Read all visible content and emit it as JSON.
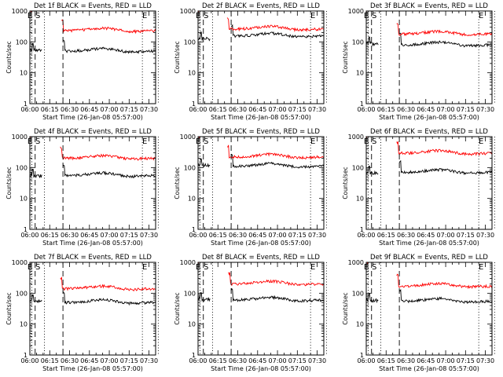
{
  "figure": {
    "x_label": "Start Time (26-Jan-08 05:57:00)",
    "y_label": "Counts/sec",
    "x_ticks": [
      "06:00",
      "06:15",
      "06:30",
      "06:45",
      "07:00",
      "07:15",
      "07:30"
    ],
    "y_ticks": [
      "1",
      "10",
      "100",
      "1000"
    ],
    "marker_labels": [
      "E",
      "S",
      "E"
    ]
  },
  "chart_data": [
    {
      "type": "line",
      "title": "Det 1f BLACK = Events, RED = LLD",
      "xlim_min": [
        3,
        98
      ],
      "ylim": [
        1,
        1000
      ],
      "markers_dashed": [
        7,
        28
      ],
      "markers_dotted": [
        4.5,
        14,
        88,
        100
      ],
      "marker_E1": 4.5,
      "marker_S": 7,
      "marker_E2": 88,
      "series": [
        {
          "name": "Events",
          "color": "#000000",
          "base": 50,
          "pre": 55,
          "gap_end": 28
        },
        {
          "name": "LLD",
          "color": "#ff0000",
          "base": 230,
          "pre": 1000,
          "gap_end": 27
        }
      ]
    },
    {
      "type": "line",
      "title": "Det 2f BLACK = Events, RED = LLD",
      "xlim_min": [
        3,
        98
      ],
      "ylim": [
        1,
        1000
      ],
      "markers_dashed": [
        7,
        28
      ],
      "markers_dotted": [
        4.5,
        14,
        88,
        100
      ],
      "marker_E1": 4.5,
      "marker_S": 7,
      "marker_E2": 88,
      "series": [
        {
          "name": "Events",
          "color": "#000000",
          "base": 155,
          "pre": 130,
          "gap_end": 28
        },
        {
          "name": "LLD",
          "color": "#ff0000",
          "base": 260,
          "pre": 1000,
          "gap_end": 25
        }
      ]
    },
    {
      "type": "line",
      "title": "Det 3f BLACK = Events, RED = LLD",
      "xlim_min": [
        3,
        98
      ],
      "ylim": [
        1,
        1000
      ],
      "markers_dashed": [
        7,
        28
      ],
      "markers_dotted": [
        4.5,
        14,
        88,
        100
      ],
      "marker_E1": 4.5,
      "marker_S": 7,
      "marker_E2": 88,
      "series": [
        {
          "name": "Events",
          "color": "#000000",
          "base": 80,
          "pre": 90,
          "gap_end": 28
        },
        {
          "name": "LLD",
          "color": "#ff0000",
          "base": 180,
          "pre": 1000,
          "gap_end": 26
        }
      ]
    },
    {
      "type": "line",
      "title": "Det 4f BLACK = Events, RED = LLD",
      "xlim_min": [
        3,
        98
      ],
      "ylim": [
        1,
        1000
      ],
      "markers_dashed": [
        7,
        28
      ],
      "markers_dotted": [
        4.5,
        14,
        88,
        100
      ],
      "marker_E1": 4.5,
      "marker_S": 7,
      "marker_E2": 88,
      "series": [
        {
          "name": "Events",
          "color": "#000000",
          "base": 55,
          "pre": 55,
          "gap_end": 28
        },
        {
          "name": "LLD",
          "color": "#ff0000",
          "base": 200,
          "pre": 1000,
          "gap_end": 26
        }
      ]
    },
    {
      "type": "line",
      "title": "Det 5f BLACK = Events, RED = LLD",
      "xlim_min": [
        3,
        98
      ],
      "ylim": [
        1,
        1000
      ],
      "markers_dashed": [
        7,
        28
      ],
      "markers_dotted": [
        4.5,
        14,
        88,
        100
      ],
      "marker_E1": 4.5,
      "marker_S": 7,
      "marker_E2": 88,
      "series": [
        {
          "name": "Events",
          "color": "#000000",
          "base": 110,
          "pre": 120,
          "gap_end": 28
        },
        {
          "name": "LLD",
          "color": "#ff0000",
          "base": 220,
          "pre": 1000,
          "gap_end": 25
        }
      ]
    },
    {
      "type": "line",
      "title": "Det 6f BLACK = Events, RED = LLD",
      "xlim_min": [
        3,
        98
      ],
      "ylim": [
        1,
        1000
      ],
      "markers_dashed": [
        7,
        28
      ],
      "markers_dotted": [
        4.5,
        14,
        88,
        100
      ],
      "marker_E1": 4.5,
      "marker_S": 7,
      "marker_E2": 88,
      "series": [
        {
          "name": "Events",
          "color": "#000000",
          "base": 70,
          "pre": 70,
          "gap_end": 28
        },
        {
          "name": "LLD",
          "color": "#ff0000",
          "base": 290,
          "pre": 1000,
          "gap_end": 26
        }
      ]
    },
    {
      "type": "line",
      "title": "Det 7f BLACK = Events, RED = LLD",
      "xlim_min": [
        3,
        98
      ],
      "ylim": [
        1,
        1000
      ],
      "markers_dashed": [
        7,
        28
      ],
      "markers_dotted": [
        4.5,
        14,
        88,
        100
      ],
      "marker_E1": 4.5,
      "marker_S": 7,
      "marker_E2": 88,
      "series": [
        {
          "name": "Events",
          "color": "#000000",
          "base": 50,
          "pre": 55,
          "gap_end": 28
        },
        {
          "name": "LLD",
          "color": "#ff0000",
          "base": 140,
          "pre": 1000,
          "gap_end": 26
        }
      ]
    },
    {
      "type": "line",
      "title": "Det 8f BLACK = Events, RED = LLD",
      "xlim_min": [
        3,
        98
      ],
      "ylim": [
        1,
        1000
      ],
      "markers_dashed": [
        7,
        28
      ],
      "markers_dotted": [
        4.5,
        14,
        88,
        100
      ],
      "marker_E1": 4.5,
      "marker_S": 7,
      "marker_E2": 88,
      "series": [
        {
          "name": "Events",
          "color": "#000000",
          "base": 60,
          "pre": 65,
          "gap_end": 28
        },
        {
          "name": "LLD",
          "color": "#ff0000",
          "base": 200,
          "pre": 1000,
          "gap_end": 26
        }
      ]
    },
    {
      "type": "line",
      "title": "Det 9f BLACK = Events, RED = LLD",
      "xlim_min": [
        3,
        98
      ],
      "ylim": [
        1,
        1000
      ],
      "markers_dashed": [
        7,
        28
      ],
      "markers_dotted": [
        4.5,
        14,
        88,
        100
      ],
      "marker_E1": 4.5,
      "marker_S": 7,
      "marker_E2": 88,
      "series": [
        {
          "name": "Events",
          "color": "#000000",
          "base": 55,
          "pre": 60,
          "gap_end": 28
        },
        {
          "name": "LLD",
          "color": "#ff0000",
          "base": 170,
          "pre": 1000,
          "gap_end": 26
        }
      ]
    }
  ]
}
